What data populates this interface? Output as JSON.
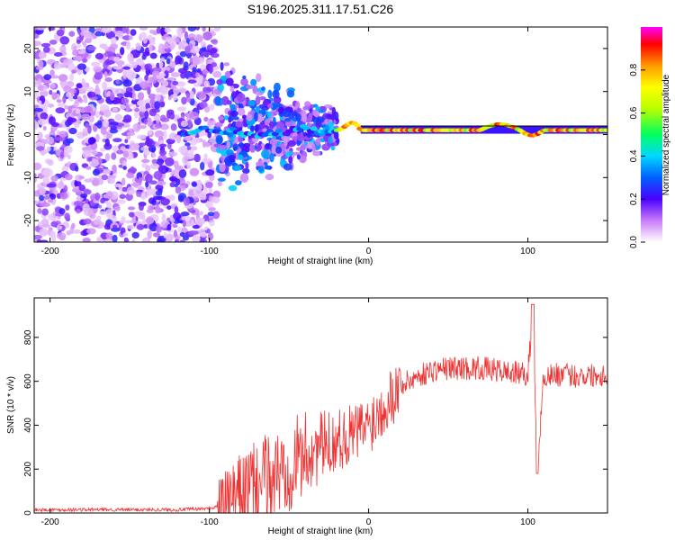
{
  "title": "S196.2025.311.17.51.C26",
  "chart_data": [
    {
      "type": "heatmap",
      "name": "spectrogram",
      "xlabel": "Height of straight line (km)",
      "ylabel": "Frequency (Hz)",
      "xlim": [
        -210,
        150
      ],
      "ylim": [
        -25,
        25
      ],
      "xticks": [
        -200,
        -100,
        0,
        100
      ],
      "yticks": [
        -20,
        -10,
        0,
        10,
        20
      ],
      "xtick_labels": [
        "-200",
        "-100",
        "0",
        "100"
      ],
      "ytick_labels": [
        "-20",
        "-10",
        "0",
        "10",
        "20"
      ],
      "colorbar": {
        "label": "Normalized spectral amplitude",
        "range": [
          0,
          1
        ],
        "ticks": [
          0.0,
          0.2,
          0.4,
          0.6,
          0.8
        ],
        "tick_labels": [
          "0.0",
          "0.2",
          "0.4",
          "0.6",
          "0.8"
        ]
      },
      "regions": [
        {
          "x_range": [
            -210,
            -95
          ],
          "description": "broadband noise",
          "amplitude": 0.12
        },
        {
          "x_range": [
            -95,
            -20
          ],
          "description": "scattered returns",
          "amplitude": 0.3
        },
        {
          "x_range": [
            -20,
            150
          ],
          "description": "carrier line near 1 Hz",
          "amplitude": 0.85
        }
      ]
    },
    {
      "type": "line",
      "name": "snr",
      "xlabel": "Height of straight line (km)",
      "ylabel": "SNR (10 * v/v)",
      "xlim": [
        -210,
        150
      ],
      "ylim": [
        0,
        980
      ],
      "xticks": [
        -200,
        -100,
        0,
        100
      ],
      "yticks": [
        0,
        200,
        400,
        600,
        800
      ],
      "xtick_labels": [
        "-200",
        "-100",
        "0",
        "100"
      ],
      "ytick_labels": [
        "0",
        "200",
        "400",
        "600",
        "800"
      ],
      "color": "#ee3333",
      "series": [
        {
          "name": "SNR",
          "x": [
            -210,
            -180,
            -150,
            -120,
            -100,
            -90,
            -80,
            -70,
            -60,
            -50,
            -40,
            -30,
            -20,
            -10,
            0,
            10,
            20,
            30,
            40,
            50,
            60,
            70,
            80,
            90,
            100,
            103,
            106,
            110,
            120,
            130,
            140,
            150
          ],
          "values": [
            15,
            15,
            15,
            15,
            20,
            40,
            90,
            130,
            160,
            220,
            270,
            300,
            330,
            360,
            400,
            500,
            580,
            620,
            650,
            660,
            660,
            660,
            650,
            640,
            630,
            900,
            180,
            630,
            630,
            625,
            630,
            630
          ]
        }
      ]
    }
  ]
}
